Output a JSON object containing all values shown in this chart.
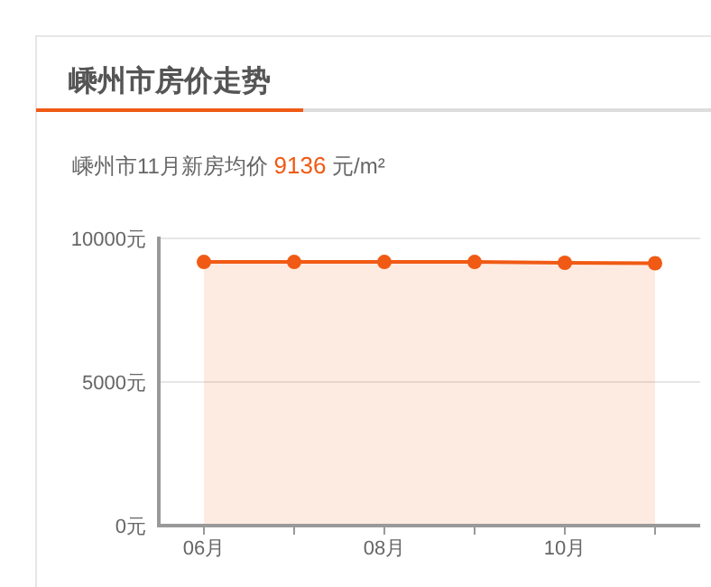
{
  "chart_data": {
    "type": "area",
    "title": "嵊州市房价走势",
    "subtitle": "嵊州市11月新房均价 9136 元/m²",
    "categories": [
      "06月",
      null,
      "08月",
      null,
      "10月",
      null
    ],
    "series": [
      {
        "color": "#f05a14",
        "values": [
          9180,
          9180,
          9180,
          9180,
          9150,
          9136
        ]
      }
    ],
    "ylim": [
      0,
      10000
    ],
    "yticks": [
      {
        "value": 0,
        "label": "0元"
      },
      {
        "value": 5000,
        "label": "5000元"
      },
      {
        "value": 10000,
        "label": "10000元"
      }
    ],
    "grid": "y",
    "marker": "circle"
  }
}
